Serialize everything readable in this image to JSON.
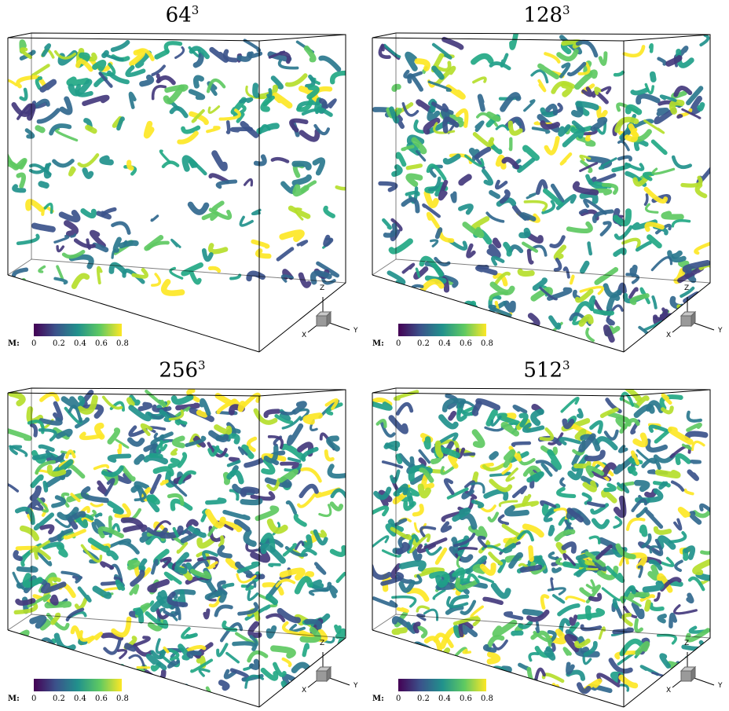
{
  "panels": [
    {
      "title_base": "64",
      "title_exp": "3",
      "density": 0.45
    },
    {
      "title_base": "128",
      "title_exp": "3",
      "density": 0.75
    },
    {
      "title_base": "256",
      "title_exp": "3",
      "density": 1.0
    },
    {
      "title_base": "512",
      "title_exp": "3",
      "density": 1.0
    }
  ],
  "colorbar": {
    "label": "M:",
    "ticks": [
      "0",
      "0.2",
      "0.4",
      "0.6",
      "0.8"
    ],
    "colors": [
      "#440154",
      "#3b528b",
      "#21918c",
      "#5ec962",
      "#fde725"
    ]
  },
  "axes": {
    "z": "Z",
    "x": "X",
    "y": "Y"
  }
}
